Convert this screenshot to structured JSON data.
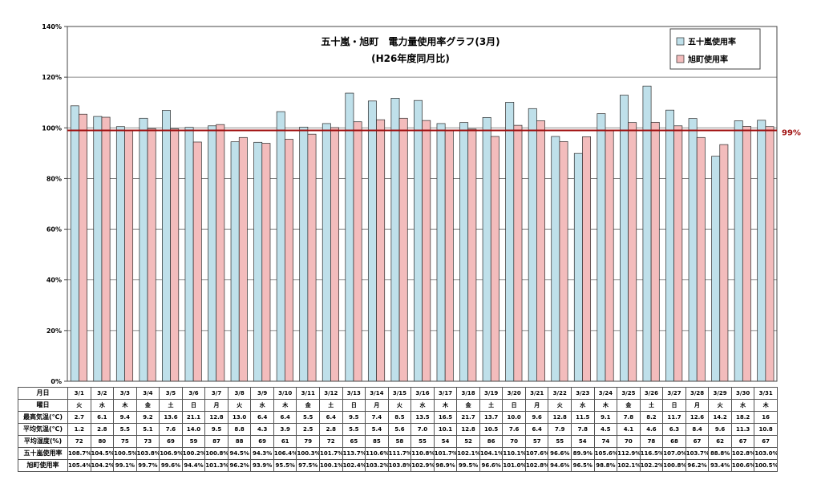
{
  "chart_data": {
    "type": "bar",
    "title": "五十嵐・旭町　電力量使用率グラフ(3月)",
    "subtitle": "(H26年度同月比)",
    "categories": [
      "3/1",
      "3/2",
      "3/3",
      "3/4",
      "3/5",
      "3/6",
      "3/7",
      "3/8",
      "3/9",
      "3/10",
      "3/11",
      "3/12",
      "3/13",
      "3/14",
      "3/15",
      "3/16",
      "3/17",
      "3/18",
      "3/19",
      "3/20",
      "3/21",
      "3/22",
      "3/23",
      "3/24",
      "3/25",
      "3/26",
      "3/27",
      "3/28",
      "3/29",
      "3/30",
      "3/31"
    ],
    "series": [
      {
        "name": "五十嵐使用率",
        "color": "#bfe0ea",
        "values": [
          108.7,
          104.5,
          100.5,
          103.8,
          106.9,
          100.2,
          100.8,
          94.5,
          94.3,
          106.4,
          100.3,
          101.7,
          113.7,
          110.6,
          111.7,
          110.8,
          101.7,
          102.1,
          104.1,
          110.1,
          107.6,
          96.6,
          89.9,
          105.6,
          112.9,
          116.5,
          107.0,
          103.7,
          88.8,
          102.8,
          103.0
        ],
        "labels": [
          "108.7%",
          "104.5%",
          "100.5%",
          "103.8%",
          "106.9%",
          "100.2%",
          "100.8%",
          "94.5%",
          "94.3%",
          "106.4%",
          "100.3%",
          "101.7%",
          "113.7%",
          "110.6%",
          "111.7%",
          "110.8%",
          "101.7%",
          "102.1%",
          "104.1%",
          "110.1%",
          "107.6%",
          "96.6%",
          "89.9%",
          "105.6%",
          "112.9%",
          "116.5%",
          "107.0%",
          "103.7%",
          "88.8%",
          "102.8%",
          "103.0%"
        ]
      },
      {
        "name": "旭町使用率",
        "color": "#f3bcbc",
        "values": [
          105.4,
          104.2,
          99.1,
          99.7,
          99.6,
          94.4,
          101.3,
          96.2,
          93.9,
          95.5,
          97.5,
          100.1,
          102.4,
          103.2,
          103.8,
          102.9,
          98.9,
          99.5,
          96.6,
          101.0,
          102.8,
          94.6,
          96.5,
          98.8,
          102.1,
          102.2,
          100.8,
          96.2,
          93.4,
          100.6,
          100.5
        ],
        "labels": [
          "105.4%",
          "104.2%",
          "99.1%",
          "99.7%",
          "99.6%",
          "94.4%",
          "101.3%",
          "96.2%",
          "93.9%",
          "95.5%",
          "97.5%",
          "100.1%",
          "102.4%",
          "103.2%",
          "103.8%",
          "102.9%",
          "98.9%",
          "99.5%",
          "96.6%",
          "101.0%",
          "102.8%",
          "94.6%",
          "96.5%",
          "98.8%",
          "102.1%",
          "102.2%",
          "100.8%",
          "96.2%",
          "93.4%",
          "100.6%",
          "100.5%"
        ]
      }
    ],
    "ylim": [
      0,
      140
    ],
    "yticks": [
      0,
      20,
      40,
      60,
      80,
      100,
      120,
      140
    ],
    "ytick_labels": [
      "0%",
      "20%",
      "40%",
      "60%",
      "80%",
      "100%",
      "120%",
      "140%"
    ],
    "reference_line": {
      "value": 99,
      "label": "99%",
      "color": "#a01010"
    },
    "grid": true,
    "legend_position": "top-right"
  },
  "table": {
    "date_header": "月日",
    "rows": [
      {
        "label": "曜日",
        "values": [
          "火",
          "水",
          "木",
          "金",
          "土",
          "日",
          "月",
          "火",
          "水",
          "木",
          "金",
          "土",
          "日",
          "月",
          "火",
          "水",
          "木",
          "金",
          "土",
          "日",
          "月",
          "火",
          "水",
          "木",
          "金",
          "土",
          "日",
          "月",
          "火",
          "水",
          "木"
        ]
      },
      {
        "label": "最高気温(℃)",
        "values": [
          "2.7",
          "6.1",
          "9.4",
          "9.2",
          "13.6",
          "21.1",
          "12.8",
          "13.0",
          "6.4",
          "6.4",
          "5.5",
          "6.4",
          "9.5",
          "7.4",
          "8.5",
          "13.5",
          "16.5",
          "21.7",
          "13.7",
          "10.0",
          "9.6",
          "12.8",
          "11.5",
          "9.1",
          "7.8",
          "8.2",
          "11.7",
          "12.6",
          "14.2",
          "18.2",
          "16"
        ]
      },
      {
        "label": "平均気温(℃)",
        "values": [
          "1.2",
          "2.8",
          "5.5",
          "5.1",
          "7.6",
          "14.0",
          "9.5",
          "8.8",
          "4.3",
          "3.9",
          "2.5",
          "2.8",
          "5.5",
          "5.4",
          "5.6",
          "7.0",
          "10.1",
          "12.8",
          "10.5",
          "7.6",
          "6.4",
          "7.9",
          "7.8",
          "4.5",
          "4.1",
          "4.6",
          "6.3",
          "8.4",
          "9.6",
          "11.3",
          "10.8"
        ]
      },
      {
        "label": "平均湿度(%)",
        "values": [
          "72",
          "80",
          "75",
          "73",
          "69",
          "59",
          "87",
          "88",
          "69",
          "61",
          "79",
          "72",
          "65",
          "85",
          "58",
          "55",
          "54",
          "52",
          "86",
          "70",
          "57",
          "55",
          "54",
          "74",
          "70",
          "78",
          "68",
          "67",
          "62",
          "67",
          "67"
        ]
      },
      {
        "label": "五十嵐使用率",
        "values": [
          "108.7%",
          "104.5%",
          "100.5%",
          "103.8%",
          "106.9%",
          "100.2%",
          "100.8%",
          "94.5%",
          "94.3%",
          "106.4%",
          "100.3%",
          "101.7%",
          "113.7%",
          "110.6%",
          "111.7%",
          "110.8%",
          "101.7%",
          "102.1%",
          "104.1%",
          "110.1%",
          "107.6%",
          "96.6%",
          "89.9%",
          "105.6%",
          "112.9%",
          "116.5%",
          "107.0%",
          "103.7%",
          "88.8%",
          "102.8%",
          "103.0%"
        ]
      },
      {
        "label": "旭町使用率",
        "values": [
          "105.4%",
          "104.2%",
          "99.1%",
          "99.7%",
          "99.6%",
          "94.4%",
          "101.3%",
          "96.2%",
          "93.9%",
          "95.5%",
          "97.5%",
          "100.1%",
          "102.4%",
          "103.2%",
          "103.8%",
          "102.9%",
          "98.9%",
          "99.5%",
          "96.6%",
          "101.0%",
          "102.8%",
          "94.6%",
          "96.5%",
          "98.8%",
          "102.1%",
          "102.2%",
          "100.8%",
          "96.2%",
          "93.4%",
          "100.6%",
          "100.5%"
        ]
      }
    ]
  }
}
